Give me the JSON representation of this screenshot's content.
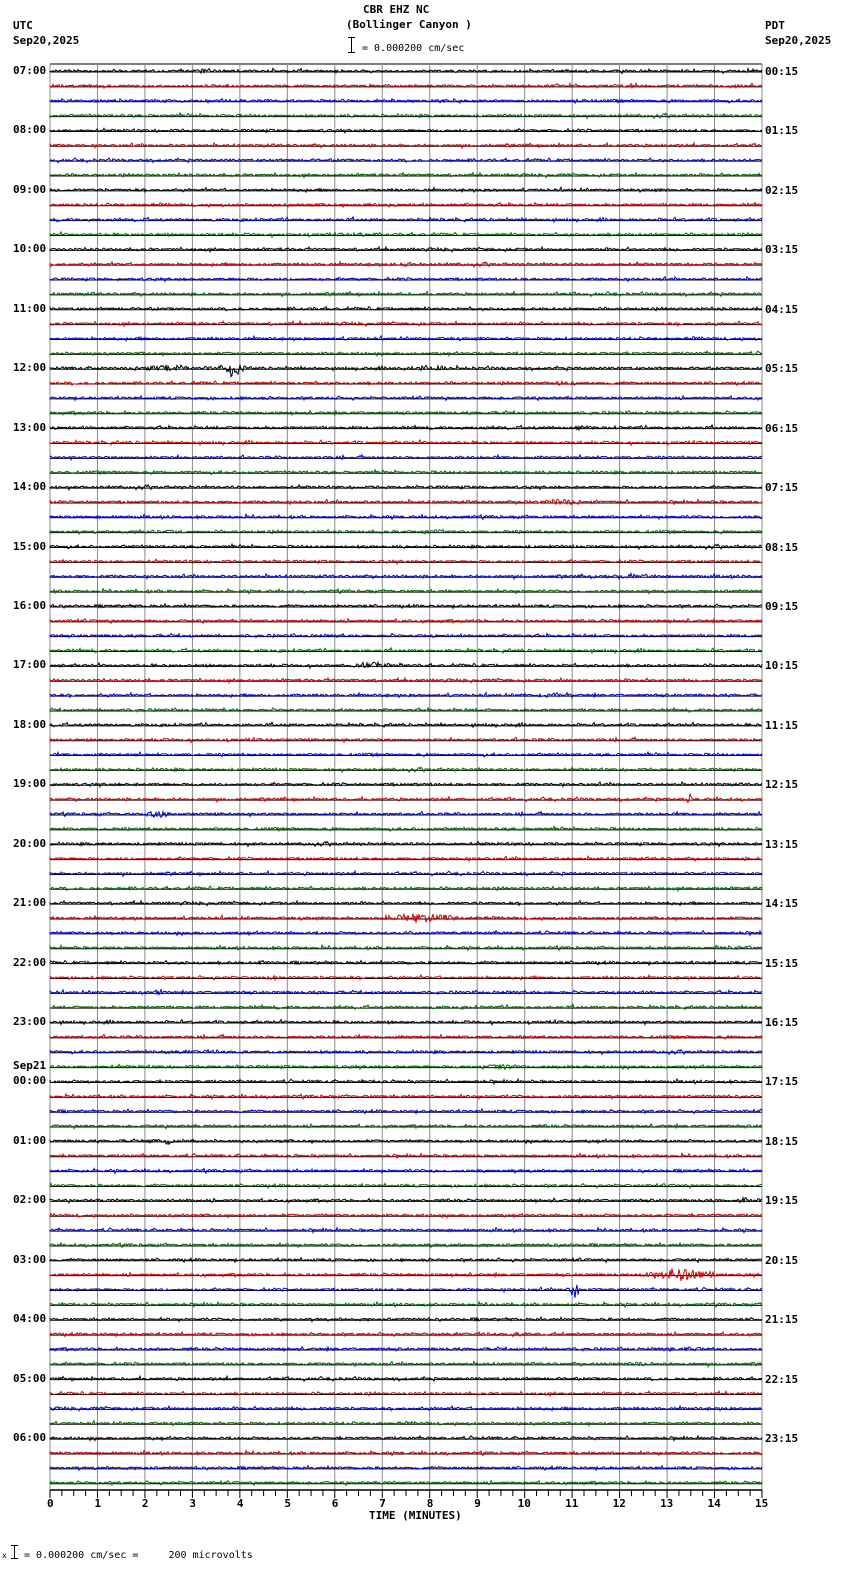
{
  "header": {
    "station": "CBR EHZ NC",
    "location": "(Bollinger Canyon )",
    "scale_text": "= 0.000200 cm/sec",
    "left_tz": "UTC",
    "left_date": "Sep20,2025",
    "right_tz": "PDT",
    "right_date": "Sep20,2025"
  },
  "footer": {
    "scale_note": "= 0.000200 cm/sec =     200 microvolts",
    "prefix_glyph": "x"
  },
  "colors": {
    "trace_cycle": [
      "#000000",
      "#cc0000",
      "#0000cc",
      "#006600"
    ],
    "grid": "#888888",
    "baseline": "#000000"
  },
  "chart_data": {
    "type": "line",
    "title": "CBR EHZ NC (Bollinger Canyon )",
    "subtitle": "= 0.000200 cm/sec",
    "xlabel": "TIME (MINUTES)",
    "ylabel": "",
    "x_ticks": [
      "0",
      "1",
      "2",
      "3",
      "4",
      "5",
      "6",
      "7",
      "8",
      "9",
      "10",
      "11",
      "12",
      "13",
      "14",
      "15"
    ],
    "xlim": [
      0,
      15
    ],
    "grid": true,
    "rows_per_hour": 4,
    "minutes_per_row": 15,
    "left_labels": [
      {
        "row": 0,
        "text": "07:00"
      },
      {
        "row": 4,
        "text": "08:00"
      },
      {
        "row": 8,
        "text": "09:00"
      },
      {
        "row": 12,
        "text": "10:00"
      },
      {
        "row": 16,
        "text": "11:00"
      },
      {
        "row": 20,
        "text": "12:00"
      },
      {
        "row": 24,
        "text": "13:00"
      },
      {
        "row": 28,
        "text": "14:00"
      },
      {
        "row": 32,
        "text": "15:00"
      },
      {
        "row": 36,
        "text": "16:00"
      },
      {
        "row": 40,
        "text": "17:00"
      },
      {
        "row": 44,
        "text": "18:00"
      },
      {
        "row": 48,
        "text": "19:00"
      },
      {
        "row": 52,
        "text": "20:00"
      },
      {
        "row": 56,
        "text": "21:00"
      },
      {
        "row": 60,
        "text": "22:00"
      },
      {
        "row": 64,
        "text": "23:00"
      },
      {
        "row": 68,
        "text": "00:00",
        "date": "Sep21"
      },
      {
        "row": 72,
        "text": "01:00"
      },
      {
        "row": 76,
        "text": "02:00"
      },
      {
        "row": 80,
        "text": "03:00"
      },
      {
        "row": 84,
        "text": "04:00"
      },
      {
        "row": 88,
        "text": "05:00"
      },
      {
        "row": 92,
        "text": "06:00"
      }
    ],
    "right_labels": [
      {
        "row": 0,
        "text": "00:15"
      },
      {
        "row": 4,
        "text": "01:15"
      },
      {
        "row": 8,
        "text": "02:15"
      },
      {
        "row": 12,
        "text": "03:15"
      },
      {
        "row": 16,
        "text": "04:15"
      },
      {
        "row": 20,
        "text": "05:15"
      },
      {
        "row": 24,
        "text": "06:15"
      },
      {
        "row": 28,
        "text": "07:15"
      },
      {
        "row": 32,
        "text": "08:15"
      },
      {
        "row": 36,
        "text": "09:15"
      },
      {
        "row": 40,
        "text": "10:15"
      },
      {
        "row": 44,
        "text": "11:15"
      },
      {
        "row": 48,
        "text": "12:15"
      },
      {
        "row": 52,
        "text": "13:15"
      },
      {
        "row": 56,
        "text": "14:15"
      },
      {
        "row": 60,
        "text": "15:15"
      },
      {
        "row": 64,
        "text": "16:15"
      },
      {
        "row": 68,
        "text": "17:15"
      },
      {
        "row": 72,
        "text": "18:15"
      },
      {
        "row": 76,
        "text": "19:15"
      },
      {
        "row": 80,
        "text": "20:15"
      },
      {
        "row": 84,
        "text": "21:15"
      },
      {
        "row": 88,
        "text": "22:15"
      },
      {
        "row": 92,
        "text": "23:15"
      }
    ],
    "total_rows": 96,
    "events": [
      {
        "row": 0,
        "minute": 3.2,
        "amp": 3,
        "dur": 0.5
      },
      {
        "row": 9,
        "minute": 6.9,
        "amp": 3,
        "dur": 0.6
      },
      {
        "row": 11,
        "minute": 6.5,
        "amp": 5,
        "dur": 0.3
      },
      {
        "row": 13,
        "minute": 7.5,
        "amp": 3,
        "dur": 0.5
      },
      {
        "row": 20,
        "minute": 3.85,
        "amp": 12,
        "dur": 0.6
      },
      {
        "row": 20,
        "minute": 2.5,
        "amp": 5,
        "dur": 2.5
      },
      {
        "row": 20,
        "minute": 8.0,
        "amp": 4,
        "dur": 1.5
      },
      {
        "row": 21,
        "minute": 10.8,
        "amp": 4,
        "dur": 1.0
      },
      {
        "row": 24,
        "minute": 11.2,
        "amp": 3,
        "dur": 0.8
      },
      {
        "row": 29,
        "minute": 10.8,
        "amp": 4,
        "dur": 1.5
      },
      {
        "row": 31,
        "minute": 2.5,
        "amp": 3,
        "dur": 1.2
      },
      {
        "row": 31,
        "minute": 8.0,
        "amp": 3,
        "dur": 1.2
      },
      {
        "row": 34,
        "minute": 12.2,
        "amp": 4,
        "dur": 1.5
      },
      {
        "row": 40,
        "minute": 6.8,
        "amp": 4,
        "dur": 1.5
      },
      {
        "row": 42,
        "minute": 10.5,
        "amp": 3,
        "dur": 1.0
      },
      {
        "row": 49,
        "minute": 13.45,
        "amp": 11,
        "dur": 0.1
      },
      {
        "row": 50,
        "minute": 2.3,
        "amp": 5,
        "dur": 0.8
      },
      {
        "row": 57,
        "minute": 7.8,
        "amp": 6,
        "dur": 2.5
      },
      {
        "row": 58,
        "minute": 7.6,
        "amp": 4,
        "dur": 0.6
      },
      {
        "row": 59,
        "minute": 14.5,
        "amp": 4,
        "dur": 1.0
      },
      {
        "row": 60,
        "minute": 4.5,
        "amp": 4,
        "dur": 0.3
      },
      {
        "row": 61,
        "minute": 4.7,
        "amp": 4,
        "dur": 0.4
      },
      {
        "row": 62,
        "minute": 2.3,
        "amp": 4,
        "dur": 0.3
      },
      {
        "row": 66,
        "minute": 3.5,
        "amp": 3,
        "dur": 2.5
      },
      {
        "row": 67,
        "minute": 9.5,
        "amp": 4,
        "dur": 1.5
      },
      {
        "row": 72,
        "minute": 2.5,
        "amp": 4,
        "dur": 1.2
      },
      {
        "row": 76,
        "minute": 14.6,
        "amp": 4,
        "dur": 0.4
      },
      {
        "row": 81,
        "minute": 13.3,
        "amp": 9,
        "dur": 2.2
      },
      {
        "row": 82,
        "minute": 11.05,
        "amp": 14,
        "dur": 0.3
      },
      {
        "row": 85,
        "minute": 9.5,
        "amp": 3,
        "dur": 3.0
      },
      {
        "row": 86,
        "minute": 13.6,
        "amp": 4,
        "dur": 1.0
      },
      {
        "row": 87,
        "minute": 12.4,
        "amp": 3,
        "dur": 0.8
      }
    ]
  }
}
